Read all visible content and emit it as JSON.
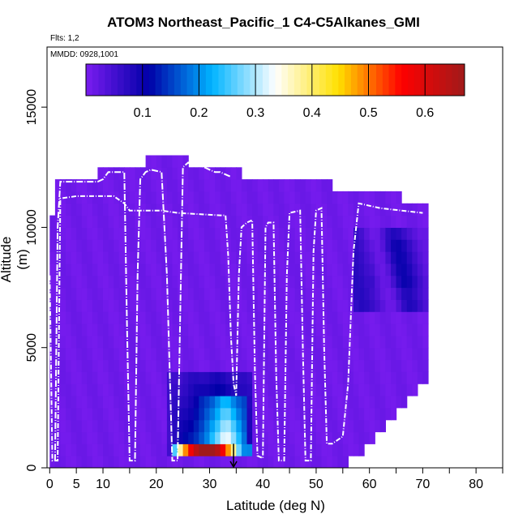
{
  "chart_data": {
    "type": "heatmap",
    "title": "ATOM3 Northeast_Pacific_1 C4-C5Alkanes_GMI",
    "flights_note": "Flts: 1,2",
    "date_note": "MMDD: 0928,1001",
    "xlabel": "Latitude (deg N)",
    "ylabel": "Altitude (m)",
    "xlim": [
      -0.5,
      85
    ],
    "ylim": [
      0,
      17500
    ],
    "x_ticks": [
      0,
      5,
      10,
      20,
      30,
      40,
      50,
      60,
      70,
      80
    ],
    "y_ticks": [
      0,
      5000,
      10000,
      15000
    ],
    "colorbar": {
      "range": [
        0,
        0.67
      ],
      "ticks": [
        0.1,
        0.2,
        0.3,
        0.4,
        0.5,
        0.6
      ],
      "colors": [
        "#7a1cf0",
        "#0000a8",
        "#00b4ff",
        "#ffffff",
        "#ffe000",
        "#ff0000",
        "#a01a1a"
      ]
    },
    "background_value": 0.01,
    "curtain_top_m": [
      {
        "lat": 0,
        "alt": 7500
      },
      {
        "lat": 0.5,
        "alt": 10500
      },
      {
        "lat": 1,
        "alt": 11500
      },
      {
        "lat": 2,
        "alt": 12000
      },
      {
        "lat": 9,
        "alt": 12000
      },
      {
        "lat": 10,
        "alt": 12500
      },
      {
        "lat": 18,
        "alt": 12500
      },
      {
        "lat": 19,
        "alt": 13000
      },
      {
        "lat": 25,
        "alt": 13000
      },
      {
        "lat": 26,
        "alt": 12500
      },
      {
        "lat": 35,
        "alt": 12500
      },
      {
        "lat": 36,
        "alt": 12000
      },
      {
        "lat": 52,
        "alt": 12000
      },
      {
        "lat": 53,
        "alt": 11500
      },
      {
        "lat": 65,
        "alt": 11500
      },
      {
        "lat": 66,
        "alt": 11000
      },
      {
        "lat": 70,
        "alt": 11000
      },
      {
        "lat": 71,
        "alt": 10500
      }
    ],
    "curtain_right_m": [
      {
        "lat": 70.5,
        "alt": 10500
      },
      {
        "lat": 70.5,
        "alt": 6500
      },
      {
        "lat": 71,
        "alt": 6000
      },
      {
        "lat": 71,
        "alt": 4000
      },
      {
        "lat": 70,
        "alt": 3500
      },
      {
        "lat": 68,
        "alt": 3000
      },
      {
        "lat": 66,
        "alt": 2500
      },
      {
        "lat": 64,
        "alt": 2000
      },
      {
        "lat": 62,
        "alt": 1500
      },
      {
        "lat": 60,
        "alt": 1000
      },
      {
        "lat": 57,
        "alt": 500
      },
      {
        "lat": 55,
        "alt": 0
      }
    ],
    "features": [
      {
        "name": "upper-north-low",
        "lat_min": 57,
        "lat_max": 70.5,
        "alt_min": 6500,
        "alt_max": 10000,
        "value": 0.08
      },
      {
        "name": "north-trough",
        "lat_min": 60,
        "lat_max": 70.5,
        "alt_min": 7500,
        "alt_max": 9500,
        "value": 0.1
      },
      {
        "name": "boundary-layer-plume",
        "lat_min": 22,
        "lat_max": 38,
        "alt_min": 500,
        "alt_max": 4000,
        "value": 0.22
      },
      {
        "name": "plume-core",
        "lat_min": 28,
        "lat_max": 37,
        "alt_min": 800,
        "alt_max": 3000,
        "value": 0.32
      },
      {
        "name": "surface-peak-strip",
        "lat_min": 23,
        "lat_max": 38,
        "alt_min": 400,
        "alt_max": 800,
        "value": 0.6
      }
    ],
    "flight_path": [
      [
        0,
        8000
      ],
      [
        0.5,
        300
      ],
      [
        1.5,
        300
      ],
      [
        2,
        11200
      ],
      [
        5,
        11300
      ],
      [
        12,
        11300
      ],
      [
        14,
        11000
      ],
      [
        15,
        10700
      ],
      [
        21,
        10700
      ],
      [
        24,
        10600
      ],
      [
        32,
        10500
      ],
      [
        33,
        10500
      ],
      [
        33.5,
        8800
      ],
      [
        34,
        5500
      ],
      [
        34.5,
        3500
      ],
      [
        35,
        3000
      ],
      [
        35.5,
        8000
      ],
      [
        36,
        10000
      ],
      [
        37,
        10200
      ],
      [
        38,
        10300
      ],
      [
        38.5,
        4000
      ],
      [
        39,
        500
      ],
      [
        40,
        400
      ],
      [
        40.5,
        10000
      ],
      [
        41,
        10200
      ],
      [
        42,
        10200
      ],
      [
        42.5,
        4000
      ],
      [
        43,
        300
      ],
      [
        44,
        300
      ],
      [
        44.5,
        8000
      ],
      [
        45,
        10600
      ],
      [
        47,
        10700
      ],
      [
        47.5,
        5000
      ],
      [
        48,
        300
      ],
      [
        49,
        300
      ],
      [
        49.5,
        9000
      ],
      [
        50,
        10700
      ],
      [
        51,
        10800
      ],
      [
        51.5,
        5000
      ],
      [
        52,
        1000
      ],
      [
        53,
        1000
      ],
      [
        55,
        1300
      ],
      [
        56,
        3500
      ],
      [
        57,
        9000
      ],
      [
        58,
        11000
      ],
      [
        62,
        10800
      ],
      [
        66,
        10700
      ],
      [
        70,
        10600
      ]
    ],
    "flight_path_2": [
      [
        1,
        300
      ],
      [
        1.5,
        10000
      ],
      [
        2,
        11900
      ],
      [
        9,
        11900
      ],
      [
        10,
        12000
      ],
      [
        11,
        12300
      ],
      [
        14,
        12300
      ],
      [
        14.5,
        6000
      ],
      [
        15,
        300
      ],
      [
        16,
        300
      ],
      [
        16.5,
        8000
      ],
      [
        17,
        12000
      ],
      [
        18,
        12300
      ],
      [
        19,
        12400
      ],
      [
        21,
        12300
      ],
      [
        22,
        8000
      ],
      [
        23,
        300
      ],
      [
        24,
        300
      ],
      [
        25,
        12500
      ],
      [
        26,
        12700
      ],
      [
        27,
        12600
      ],
      [
        28,
        12600
      ],
      [
        29,
        12500
      ],
      [
        30,
        12400
      ],
      [
        31,
        12300
      ],
      [
        32,
        12300
      ],
      [
        33,
        12200
      ],
      [
        34,
        12100
      ]
    ],
    "surface_marker_lat": 34.5
  }
}
